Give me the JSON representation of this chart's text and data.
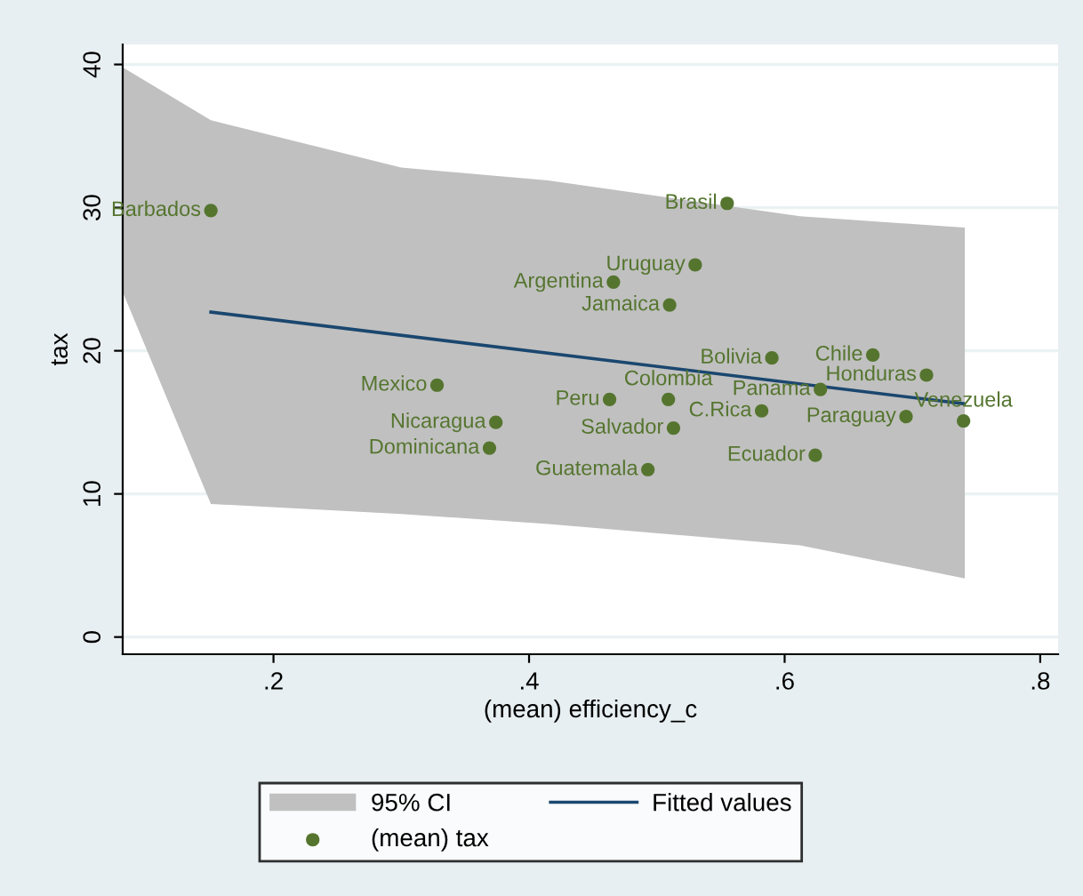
{
  "chart_data": {
    "type": "scatter",
    "xlabel": "(mean) efficiency_c",
    "ylabel": "tax",
    "xlim": [
      0.082,
      0.814
    ],
    "ylim": [
      -1.2,
      41.4
    ],
    "xticks": [
      {
        "value": 0.2,
        "label": ".2"
      },
      {
        "value": 0.4,
        "label": ".4"
      },
      {
        "value": 0.6,
        "label": ".6"
      },
      {
        "value": 0.8,
        "label": ".8"
      }
    ],
    "yticks": [
      0,
      10,
      20,
      30,
      40
    ],
    "grid": "y",
    "legend": "bottom",
    "series": [
      {
        "name": "95% CI",
        "type": "line",
        "color": "#c0c0c0",
        "x": [
          0.082,
          0.151,
          0.3,
          0.415,
          0.612,
          0.741
        ],
        "values": [
          null,
          null,
          null,
          null,
          null,
          null
        ],
        "lower": [
          24.1,
          9.3,
          8.6,
          7.9,
          6.4,
          4.1
        ],
        "upper": [
          39.8,
          36.1,
          32.8,
          31.9,
          29.4,
          28.6
        ]
      },
      {
        "name": "Fitted values",
        "type": "line",
        "color": "#1a476f",
        "marker": "none",
        "x": [
          0.151,
          0.74
        ],
        "values": [
          22.7,
          16.3
        ]
      },
      {
        "name": "(mean) tax",
        "color": "#55752f",
        "marker": "circle",
        "x": [
          0.151,
          0.328,
          0.374,
          0.369,
          0.463,
          0.509,
          0.513,
          0.493,
          0.466,
          0.53,
          0.51,
          0.555,
          0.59,
          0.669,
          0.711,
          0.628,
          0.582,
          0.695,
          0.74,
          0.624
        ],
        "values": [
          29.8,
          17.6,
          15.0,
          13.2,
          16.6,
          16.6,
          14.6,
          11.7,
          24.8,
          26.0,
          23.2,
          30.3,
          19.5,
          19.7,
          18.3,
          17.3,
          15.8,
          15.4,
          15.1,
          12.7
        ]
      }
    ],
    "annotations": [
      {
        "text": "Barbados",
        "x": 0.151,
        "y": 29.8
      },
      {
        "text": "Mexico",
        "x": 0.328,
        "y": 17.6
      },
      {
        "text": "Nicaragua",
        "x": 0.374,
        "y": 15.0
      },
      {
        "text": "Dominicana",
        "x": 0.369,
        "y": 13.2
      },
      {
        "text": "Peru",
        "x": 0.463,
        "y": 16.6
      },
      {
        "text": "Colombia",
        "x": 0.509,
        "y": 16.6
      },
      {
        "text": "Salvador",
        "x": 0.513,
        "y": 14.6
      },
      {
        "text": "Guatemala",
        "x": 0.493,
        "y": 11.7
      },
      {
        "text": "Argentina",
        "x": 0.466,
        "y": 24.8
      },
      {
        "text": "Uruguay",
        "x": 0.53,
        "y": 26.0
      },
      {
        "text": "Jamaica",
        "x": 0.51,
        "y": 23.2
      },
      {
        "text": "Brasil",
        "x": 0.555,
        "y": 30.3
      },
      {
        "text": "Bolivia",
        "x": 0.59,
        "y": 19.5
      },
      {
        "text": "Chile",
        "x": 0.669,
        "y": 19.7
      },
      {
        "text": "Honduras",
        "x": 0.711,
        "y": 18.3
      },
      {
        "text": "Panama",
        "x": 0.628,
        "y": 17.3
      },
      {
        "text": "C.Rica",
        "x": 0.582,
        "y": 15.8
      },
      {
        "text": "Paraguay",
        "x": 0.695,
        "y": 15.4
      },
      {
        "text": "Venezuela",
        "x": 0.74,
        "y": 15.1
      },
      {
        "text": "Ecuador",
        "x": 0.624,
        "y": 12.7
      }
    ]
  }
}
